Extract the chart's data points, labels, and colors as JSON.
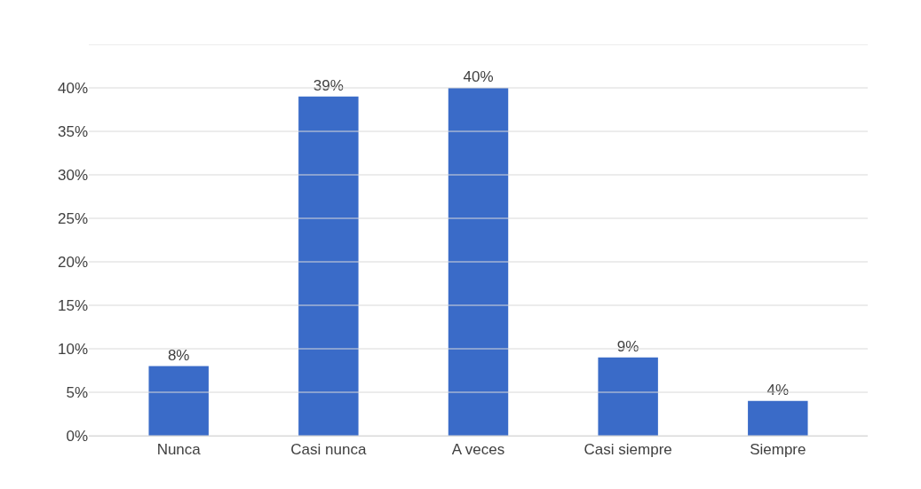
{
  "chart_data": {
    "type": "bar",
    "categories": [
      "Nunca",
      "Casi nunca",
      "A veces",
      "Casi siempre",
      "Siempre"
    ],
    "values": [
      8,
      39,
      40,
      9,
      4
    ],
    "value_labels": [
      "8%",
      "39%",
      "40%",
      "9%",
      "4%"
    ],
    "color": "#3a6bc8",
    "ylim": [
      0,
      45
    ],
    "yticks": [
      {
        "value": 0,
        "label": "0%"
      },
      {
        "value": 5,
        "label": "5%"
      },
      {
        "value": 10,
        "label": "10%"
      },
      {
        "value": 15,
        "label": "15%"
      },
      {
        "value": 20,
        "label": "20%"
      },
      {
        "value": 25,
        "label": "25%"
      },
      {
        "value": 30,
        "label": "30%"
      },
      {
        "value": 35,
        "label": "35%"
      },
      {
        "value": 40,
        "label": "40%"
      },
      {
        "value": 45,
        "label": null
      }
    ],
    "grid": "y"
  }
}
